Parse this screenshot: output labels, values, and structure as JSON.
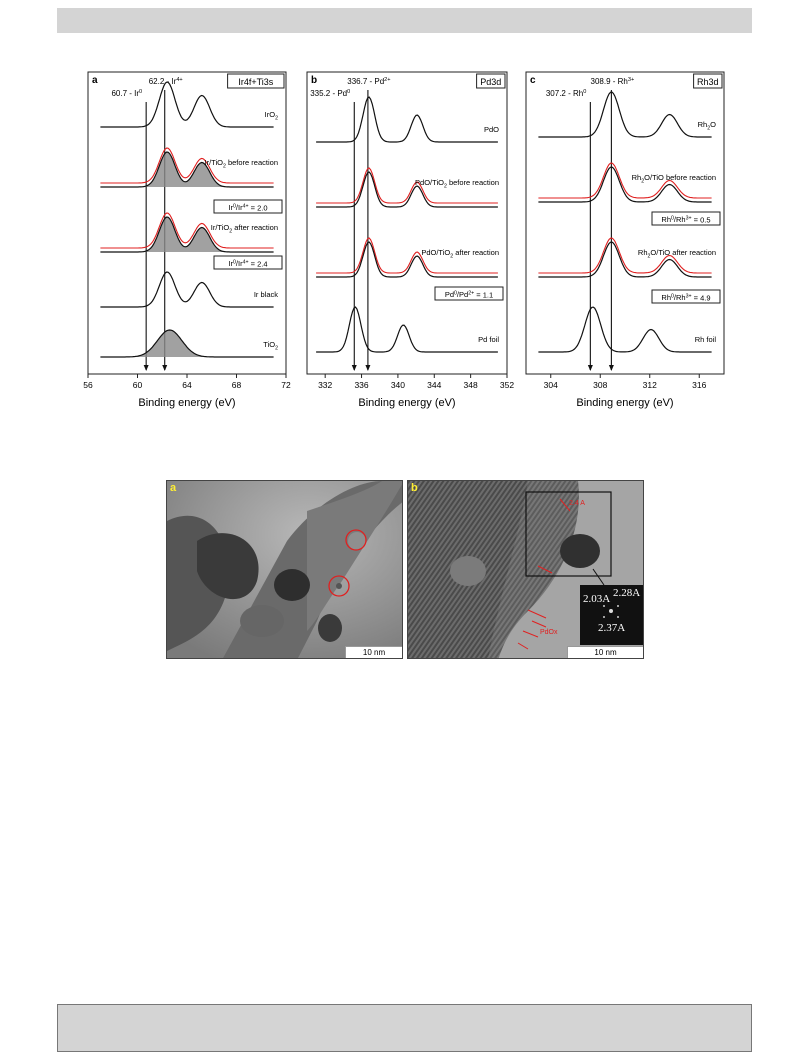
{
  "xps_figure": {
    "panels": [
      {
        "letter": "a",
        "tag": "Ir4f+Ti3s",
        "ticks": [
          "56",
          "60",
          "64",
          "68",
          "72"
        ],
        "xlabel": "Binding energy (eV)",
        "ref_lines": [
          "60.7 - Ir",
          "62.2 - Ir"
        ],
        "ref_sup": [
          "0",
          "4+"
        ],
        "curves": [
          {
            "label": "IrO",
            "sub": "2",
            "rest": ""
          },
          {
            "label": "Ir/TiO",
            "sub": "2",
            "rest": " before reaction"
          },
          {
            "label": "Ir/TiO",
            "sub": "2",
            "rest": " after reaction"
          },
          {
            "label": "Ir black",
            "sub": "",
            "rest": ""
          },
          {
            "label": "TiO",
            "sub": "2",
            "rest": ""
          }
        ],
        "ratios": [
          {
            "pre": "Ir",
            "s1": "0",
            "mid": "/Ir",
            "s2": "4+",
            "post": " = 2.0"
          },
          {
            "pre": "Ir",
            "s1": "0",
            "mid": "/Ir",
            "s2": "4+",
            "post": " = 2.4"
          }
        ]
      },
      {
        "letter": "b",
        "tag": "Pd3d",
        "ticks": [
          "332",
          "336",
          "340",
          "344",
          "348",
          "352"
        ],
        "xlabel": "Binding energy (eV)",
        "ref_lines": [
          "335.2 - Pd",
          "336.7 - Pd"
        ],
        "ref_sup": [
          "0",
          "2+"
        ],
        "curves": [
          {
            "label": "PdO",
            "sub": "",
            "rest": ""
          },
          {
            "label": "PdO/TiO",
            "sub": "2",
            "rest": " before reaction"
          },
          {
            "label": "PdO/TiO",
            "sub": "2",
            "rest": " after reaction"
          },
          {
            "label": "Pd foil",
            "sub": "",
            "rest": ""
          }
        ],
        "ratios": [
          {
            "pre": "Pd",
            "s1": "0",
            "mid": "/Pd",
            "s2": "2+",
            "post": " = 1.1"
          }
        ]
      },
      {
        "letter": "c",
        "tag": "Rh3d",
        "ticks": [
          "304",
          "308",
          "312",
          "316"
        ],
        "xlabel": "Binding energy (eV)",
        "ref_lines": [
          "307.2 - Rh",
          "308.9 - Rh"
        ],
        "ref_sup": [
          "0",
          "3+"
        ],
        "curves": [
          {
            "label": "Rh",
            "sub": "2",
            "rest": "O"
          },
          {
            "label": "Rh",
            "sub": "2",
            "rest": "O/TiO before reaction"
          },
          {
            "label": "Rh",
            "sub": "2",
            "rest": "O/TiO after reaction"
          },
          {
            "label": "Rh foil",
            "sub": "",
            "rest": ""
          }
        ],
        "ratios": [
          {
            "pre": "Rh",
            "s1": "0",
            "mid": "/Rh",
            "s2": "3+",
            "post": " = 0.5"
          },
          {
            "pre": "Rh",
            "s1": "0",
            "mid": "/Rh",
            "s2": "3+",
            "post": " = 4.9"
          }
        ]
      }
    ],
    "colors": {
      "fit_red": "#e02020",
      "line": "#111111",
      "fill": "#8a8a8a"
    }
  },
  "tem_figure": {
    "panels": [
      {
        "letter": "a",
        "scale": "10 nm"
      },
      {
        "letter": "b",
        "scale": "10 nm",
        "lattice_top": "2.4 A",
        "pdox": "PdOx",
        "fft": [
          "2.03A",
          "2.28A",
          "2.37A"
        ]
      }
    ]
  }
}
